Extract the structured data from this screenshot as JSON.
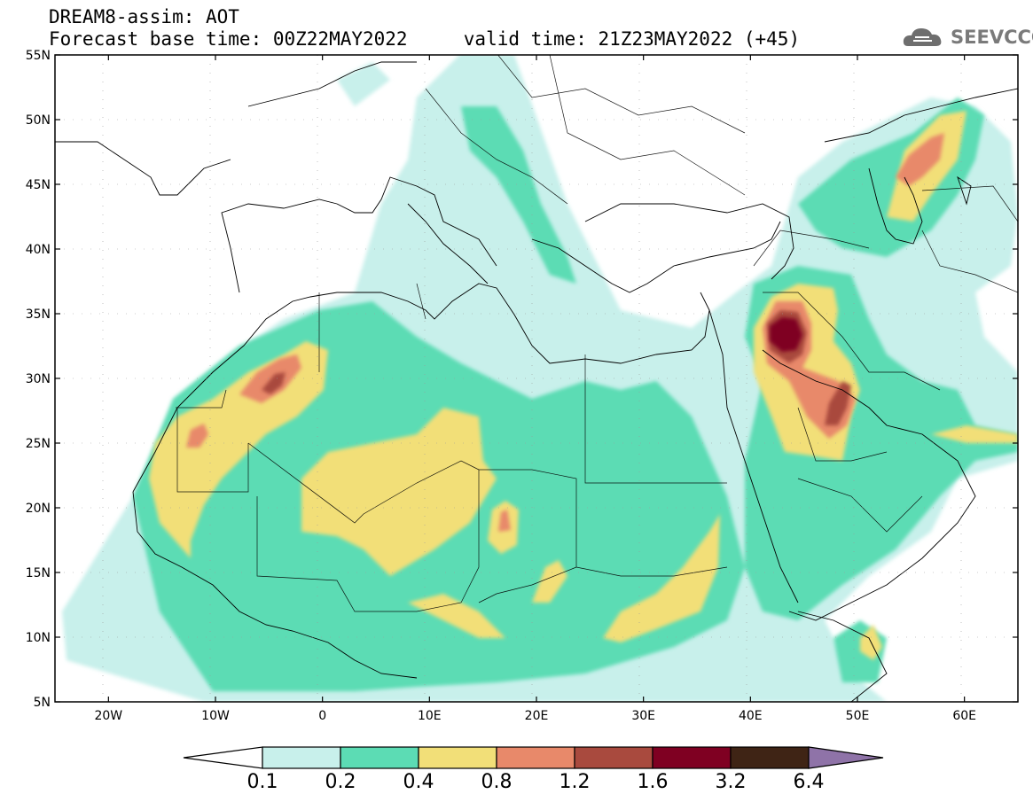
{
  "header": {
    "line1": "DREAM8-assim: AOT",
    "line2": "Forecast base time: 00Z22MAY2022     valid time: 21Z23MAY2022 (+45)",
    "logo_text": "SEEVCCC"
  },
  "map": {
    "lon_range": [
      -25,
      65
    ],
    "lat_range": [
      5,
      55
    ],
    "x_ticks": [
      "20W",
      "10W",
      "0",
      "10E",
      "20E",
      "30E",
      "40E",
      "50E",
      "60E"
    ],
    "y_ticks": [
      "55N",
      "50N",
      "45N",
      "40N",
      "35N",
      "30N",
      "25N",
      "20N",
      "15N",
      "10N",
      "5N"
    ]
  },
  "colorbar": {
    "labels": [
      "0.1",
      "0.2",
      "0.4",
      "0.8",
      "1.2",
      "1.6",
      "3.2",
      "6.4"
    ],
    "colors": [
      "#ffffff",
      "#c8f0eb",
      "#5cdcb4",
      "#f2df78",
      "#e8896a",
      "#a94a3e",
      "#7f0022",
      "#3f2415",
      "#8f73a8"
    ]
  },
  "legend_colors": {
    "l1": "#c8f0eb",
    "l2": "#5cdcb4",
    "l3": "#f2df78",
    "l4": "#e8896a",
    "l5": "#a94a3e",
    "l6": "#7f0022"
  }
}
